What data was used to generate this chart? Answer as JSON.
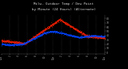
{
  "title_line1": "Milw. Outdoor Temp / Dew Point",
  "title_line2": "by Minute (24 Hours) (Alternate)",
  "bg_color": "#000000",
  "plot_bg_color": "#000000",
  "grid_color": "#555555",
  "temp_color": "#ff2200",
  "dew_color": "#0044ff",
  "ylim": [
    -3,
    88
  ],
  "ytick_values": [
    0,
    10,
    20,
    30,
    40,
    50,
    60,
    70,
    80
  ],
  "n_points": 1440,
  "title_color": "#dddddd",
  "tick_color": "#aaaaaa"
}
